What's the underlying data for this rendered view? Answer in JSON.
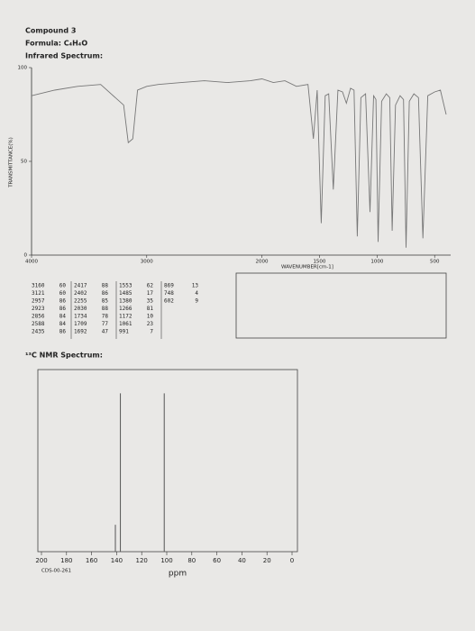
{
  "header": {
    "title": "Compound 3",
    "formula": "Formula: C₄H₄O",
    "ir_label": "Infrared Spectrum:",
    "nmr_label": "¹³C NMR Spectrum:",
    "code": "CDS-00-261"
  },
  "peak_table": {
    "columns": [
      [
        [
          3160,
          60
        ],
        [
          3121,
          60
        ],
        [
          2957,
          86
        ],
        [
          2923,
          86
        ],
        [
          2856,
          84
        ],
        [
          2588,
          84
        ],
        [
          2435,
          86
        ]
      ],
      [
        [
          2417,
          88
        ],
        [
          2402,
          86
        ],
        [
          2255,
          85
        ],
        [
          2030,
          88
        ],
        [
          1734,
          78
        ],
        [
          1709,
          77
        ],
        [
          1692,
          47
        ]
      ],
      [
        [
          1553,
          62
        ],
        [
          1485,
          17
        ],
        [
          1380,
          35
        ],
        [
          1266,
          81
        ],
        [
          1172,
          10
        ],
        [
          1061,
          23
        ],
        [
          991,
          7
        ]
      ],
      [
        [
          869,
          13
        ],
        [
          748,
          4
        ],
        [
          602,
          9
        ]
      ]
    ]
  },
  "chart_data": [
    {
      "type": "line",
      "y_label": "TRANSMITTANCE(%)",
      "x_label": "WAVENUMBER[cm-1]",
      "color": "#777777",
      "x": [
        4000,
        3800,
        3600,
        3400,
        3200,
        3160,
        3121,
        3080,
        3000,
        2900,
        2700,
        2500,
        2300,
        2100,
        2000,
        1900,
        1800,
        1700,
        1600,
        1553,
        1520,
        1485,
        1450,
        1420,
        1380,
        1340,
        1300,
        1266,
        1230,
        1200,
        1172,
        1140,
        1100,
        1061,
        1030,
        1010,
        991,
        960,
        920,
        890,
        869,
        840,
        800,
        770,
        748,
        720,
        680,
        640,
        602,
        560,
        500,
        450,
        400
      ],
      "values": [
        85,
        88,
        90,
        91,
        80,
        60,
        62,
        88,
        90,
        91,
        92,
        93,
        92,
        93,
        94,
        92,
        93,
        90,
        91,
        62,
        88,
        17,
        85,
        86,
        35,
        88,
        87,
        81,
        89,
        88,
        10,
        84,
        86,
        23,
        85,
        83,
        7,
        82,
        86,
        84,
        13,
        80,
        85,
        83,
        4,
        82,
        86,
        84,
        9,
        85,
        87,
        88,
        75
      ],
      "xlim": [
        4000,
        400
      ],
      "ylim": [
        0,
        100
      ],
      "xticks": [
        4000,
        3000,
        2000,
        1500,
        1000,
        500
      ],
      "yticks": [
        100,
        50,
        0
      ]
    },
    {
      "type": "stick",
      "x_label": "ppm",
      "color": "#555555",
      "x": [
        141,
        137,
        102
      ],
      "values": [
        17,
        100,
        100
      ],
      "xlim": [
        200,
        0
      ],
      "ylim": [
        0,
        115
      ],
      "xticks": [
        200,
        180,
        160,
        140,
        120,
        100,
        80,
        60,
        40,
        20,
        0
      ]
    }
  ]
}
